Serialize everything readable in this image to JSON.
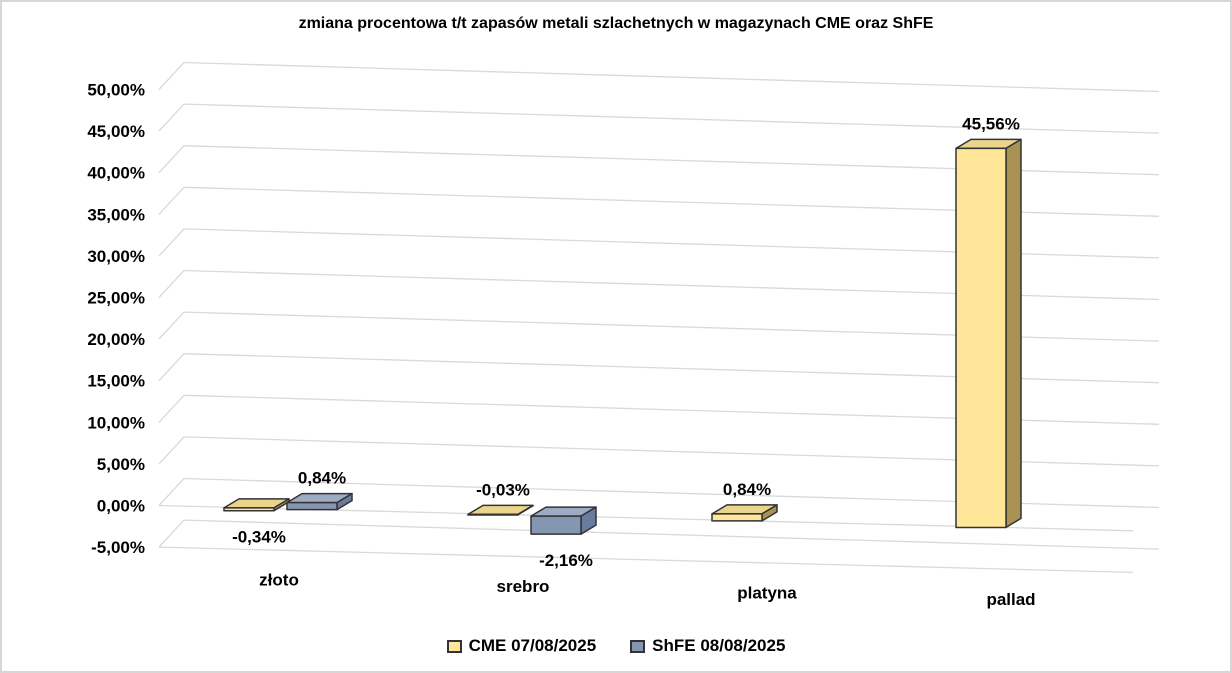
{
  "chart_data": {
    "type": "bar",
    "variant": "3d-column",
    "title": "zmiana procentowa t/t zapasów metali szlachetnych w magazynach CME oraz ShFE",
    "categories": [
      "złoto",
      "srebro",
      "platyna",
      "pallad"
    ],
    "series": [
      {
        "key": "cme",
        "name": "CME 07/08/2025",
        "color": "#FFE699",
        "color_top": "#EBD58C",
        "color_side": "#A89355",
        "values": [
          -0.34,
          -0.03,
          0.84,
          45.56
        ],
        "labels": [
          "-0,34%",
          "-0,03%",
          "0,84%",
          "45,56%"
        ],
        "label_side": [
          "below",
          "above",
          "above",
          "above"
        ]
      },
      {
        "key": "shfe",
        "name": "ShFE 08/08/2025",
        "color": "#8496B0",
        "color_top": "#9DACC4",
        "color_side": "#697C9E",
        "values": [
          0.84,
          -2.16,
          null,
          null
        ],
        "labels": [
          "0,84%",
          "-2,16%",
          null,
          null
        ],
        "label_side": [
          "above",
          "below",
          null,
          null
        ]
      }
    ],
    "ylim": [
      -5,
      50
    ],
    "ytick_step": 5,
    "ytick_labels": [
      "50,00%",
      "45,00%",
      "40,00%",
      "35,00%",
      "30,00%",
      "25,00%",
      "20,00%",
      "15,00%",
      "10,00%",
      "5,00%",
      "0,00%",
      "-5,00%"
    ],
    "grid": true,
    "legend_position": "bottom",
    "colors": {
      "gridline": "#D9D9D9",
      "outline": "#333333",
      "text": "#000000",
      "background": "#FFFFFF"
    }
  }
}
